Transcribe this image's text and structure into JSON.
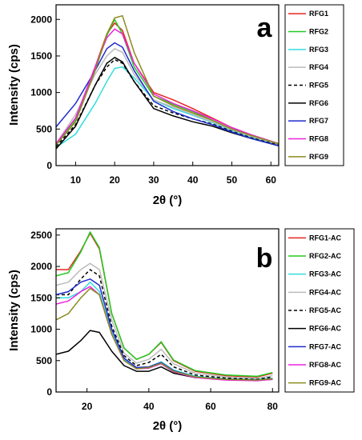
{
  "chart_data": [
    {
      "type": "line",
      "panel_label": "a",
      "xlabel": "2θ (°)",
      "ylabel": "Intensity (cps)",
      "xlim": [
        5,
        62
      ],
      "ylim": [
        0,
        2200
      ],
      "xticks": [
        10,
        20,
        30,
        40,
        50,
        60
      ],
      "yticks": [
        0,
        500,
        1000,
        1500,
        2000
      ],
      "legend_position": "right",
      "series": [
        {
          "name": "RFG1",
          "color": "#e8251f",
          "dash": "",
          "x": [
            5,
            10,
            15,
            18,
            20,
            22,
            25,
            30,
            35,
            40,
            45,
            50,
            55,
            62
          ],
          "y": [
            300,
            650,
            1350,
            1800,
            1950,
            1850,
            1400,
            1000,
            900,
            780,
            650,
            520,
            420,
            300
          ]
        },
        {
          "name": "RFG2",
          "color": "#22cc22",
          "dash": "",
          "x": [
            5,
            10,
            15,
            18,
            20,
            22,
            25,
            30,
            35,
            40,
            45,
            50,
            55,
            62
          ],
          "y": [
            280,
            620,
            1300,
            1780,
            2000,
            1800,
            1350,
            950,
            840,
            740,
            620,
            500,
            400,
            290
          ]
        },
        {
          "name": "RFG3",
          "color": "#33dddd",
          "dash": "",
          "x": [
            5,
            10,
            15,
            18,
            20,
            22,
            25,
            30,
            35,
            40,
            45,
            50,
            55,
            62
          ],
          "y": [
            250,
            430,
            850,
            1150,
            1330,
            1350,
            1200,
            900,
            780,
            690,
            590,
            480,
            390,
            280
          ]
        },
        {
          "name": "RFG4",
          "color": "#bbbbbb",
          "dash": "",
          "x": [
            5,
            10,
            15,
            18,
            20,
            22,
            25,
            30,
            35,
            40,
            45,
            50,
            55,
            62
          ],
          "y": [
            300,
            700,
            1250,
            1500,
            1600,
            1550,
            1250,
            900,
            800,
            700,
            600,
            490,
            400,
            290
          ]
        },
        {
          "name": "RFG5",
          "color": "#000000",
          "dash": "4,3",
          "x": [
            5,
            10,
            15,
            18,
            20,
            22,
            25,
            30,
            35,
            40,
            45,
            50,
            55,
            62
          ],
          "y": [
            260,
            560,
            1100,
            1350,
            1450,
            1400,
            1150,
            820,
            720,
            640,
            570,
            470,
            380,
            280
          ]
        },
        {
          "name": "RFG6",
          "color": "#000000",
          "dash": "",
          "x": [
            5,
            10,
            15,
            18,
            20,
            22,
            25,
            30,
            35,
            40,
            45,
            50,
            55,
            62
          ],
          "y": [
            230,
            540,
            1100,
            1400,
            1480,
            1420,
            1150,
            780,
            680,
            600,
            540,
            450,
            370,
            270
          ]
        },
        {
          "name": "RFG7",
          "color": "#1f2ccc",
          "dash": "",
          "x": [
            5,
            10,
            15,
            18,
            20,
            22,
            25,
            30,
            35,
            40,
            45,
            50,
            55,
            62
          ],
          "y": [
            530,
            850,
            1300,
            1600,
            1680,
            1620,
            1300,
            880,
            740,
            640,
            560,
            460,
            370,
            270
          ]
        },
        {
          "name": "RFG8",
          "color": "#ee22dd",
          "dash": "",
          "x": [
            5,
            10,
            15,
            18,
            20,
            22,
            25,
            30,
            35,
            40,
            45,
            50,
            55,
            62
          ],
          "y": [
            300,
            650,
            1350,
            1750,
            1870,
            1800,
            1400,
            980,
            850,
            750,
            640,
            520,
            420,
            300
          ]
        },
        {
          "name": "RFG9",
          "color": "#8b8b22",
          "dash": "",
          "x": [
            5,
            10,
            15,
            18,
            20,
            22,
            25,
            30,
            35,
            40,
            45,
            50,
            55,
            62
          ],
          "y": [
            280,
            600,
            1300,
            1800,
            2020,
            2050,
            1550,
            950,
            820,
            720,
            620,
            500,
            410,
            300
          ]
        }
      ]
    },
    {
      "type": "line",
      "panel_label": "b",
      "xlabel": "2θ (°)",
      "ylabel": "Intensity (cps)",
      "xlim": [
        10,
        82
      ],
      "ylim": [
        0,
        2600
      ],
      "xticks": [
        20,
        40,
        60,
        80
      ],
      "yticks": [
        0,
        500,
        1000,
        1500,
        2000,
        2500
      ],
      "legend_position": "right",
      "series": [
        {
          "name": "RFG1-AC",
          "color": "#e8251f",
          "dash": "",
          "x": [
            10,
            14,
            18,
            21,
            24,
            28,
            32,
            36,
            40,
            44,
            48,
            55,
            65,
            75,
            80
          ],
          "y": [
            1950,
            1950,
            2250,
            2530,
            2280,
            1250,
            700,
            520,
            600,
            790,
            500,
            330,
            260,
            240,
            300
          ]
        },
        {
          "name": "RFG2-AC",
          "color": "#22cc22",
          "dash": "",
          "x": [
            10,
            14,
            18,
            21,
            24,
            28,
            32,
            36,
            40,
            44,
            48,
            55,
            65,
            75,
            80
          ],
          "y": [
            1850,
            1900,
            2230,
            2550,
            2300,
            1250,
            700,
            520,
            600,
            800,
            510,
            340,
            270,
            250,
            310
          ]
        },
        {
          "name": "RFG3-AC",
          "color": "#33dddd",
          "dash": "",
          "x": [
            10,
            14,
            18,
            21,
            24,
            28,
            32,
            36,
            40,
            44,
            48,
            55,
            65,
            75,
            80
          ],
          "y": [
            1500,
            1500,
            1600,
            1750,
            1600,
            950,
            520,
            380,
            400,
            480,
            350,
            250,
            210,
            200,
            220
          ]
        },
        {
          "name": "RFG4-AC",
          "color": "#bbbbbb",
          "dash": "",
          "x": [
            10,
            14,
            18,
            21,
            24,
            28,
            32,
            36,
            40,
            44,
            48,
            55,
            65,
            75,
            80
          ],
          "y": [
            1700,
            1750,
            1950,
            2050,
            1950,
            1150,
            620,
            460,
            520,
            680,
            450,
            300,
            240,
            220,
            260
          ]
        },
        {
          "name": "RFG5-AC",
          "color": "#000000",
          "dash": "4,3",
          "x": [
            10,
            14,
            18,
            21,
            24,
            28,
            32,
            36,
            40,
            44,
            48,
            55,
            65,
            75,
            80
          ],
          "y": [
            1550,
            1550,
            1800,
            1950,
            1850,
            1050,
            580,
            420,
            470,
            600,
            400,
            270,
            220,
            200,
            240
          ]
        },
        {
          "name": "RFG6-AC",
          "color": "#000000",
          "dash": "",
          "x": [
            10,
            14,
            18,
            21,
            24,
            28,
            32,
            36,
            40,
            44,
            48,
            55,
            65,
            75,
            80
          ],
          "y": [
            600,
            650,
            820,
            980,
            950,
            650,
            420,
            330,
            330,
            400,
            300,
            230,
            200,
            190,
            200
          ]
        },
        {
          "name": "RFG7-AC",
          "color": "#1f2ccc",
          "dash": "",
          "x": [
            10,
            14,
            18,
            21,
            24,
            28,
            32,
            36,
            40,
            44,
            48,
            55,
            65,
            75,
            80
          ],
          "y": [
            1550,
            1600,
            1750,
            1800,
            1700,
            1000,
            540,
            390,
            400,
            470,
            340,
            240,
            200,
            190,
            210
          ]
        },
        {
          "name": "RFG8-AC",
          "color": "#ee22dd",
          "dash": "",
          "x": [
            10,
            14,
            18,
            21,
            24,
            28,
            32,
            36,
            40,
            44,
            48,
            55,
            65,
            75,
            80
          ],
          "y": [
            1400,
            1450,
            1600,
            1680,
            1550,
            920,
            500,
            370,
            380,
            450,
            320,
            230,
            190,
            180,
            200
          ]
        },
        {
          "name": "RFG9-AC",
          "color": "#8b8b22",
          "dash": "",
          "x": [
            10,
            14,
            18,
            21,
            24,
            28,
            32,
            36,
            40,
            44,
            48,
            55,
            65,
            75,
            80
          ],
          "y": [
            1150,
            1250,
            1500,
            1650,
            1550,
            920,
            500,
            370,
            390,
            460,
            330,
            240,
            200,
            190,
            210
          ]
        }
      ]
    }
  ]
}
